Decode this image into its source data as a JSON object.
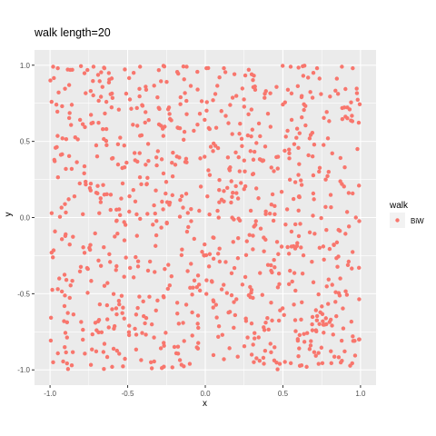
{
  "chart_data": {
    "type": "scatter",
    "title": "walk length=20",
    "xlabel": "x",
    "ylabel": "y",
    "xlim": [
      -1.1,
      1.1
    ],
    "ylim": [
      -1.1,
      1.1
    ],
    "x_ticks": [
      -1.0,
      -0.5,
      0.0,
      0.5,
      1.0
    ],
    "y_ticks": [
      -1.0,
      -0.5,
      0.0,
      0.5,
      1.0
    ],
    "x_tick_labels": [
      "-1.0",
      "-0.5",
      "0.0",
      "0.5",
      "1.0"
    ],
    "y_tick_labels": [
      "-1.0",
      "-0.5",
      "0.0",
      "0.5",
      "1.0"
    ],
    "grid": true,
    "legend": {
      "title": "walk",
      "position": "right",
      "entries": [
        "BiW"
      ]
    },
    "series": [
      {
        "name": "BiW",
        "color": "#F8766D",
        "approx_point_count": 900,
        "distribution": "uniform over [-1, 1] x [-1, 1]",
        "points": [
          [
            -0.98,
            0.99
          ],
          [
            -0.95,
            0.98
          ],
          [
            -0.72,
            0.99
          ],
          [
            -0.65,
            0.98
          ],
          [
            -0.42,
            0.99
          ],
          [
            -0.12,
            0.99
          ],
          [
            0.12,
            0.98
          ],
          [
            0.28,
            0.97
          ],
          [
            0.55,
            0.99
          ],
          [
            0.72,
            0.98
          ],
          [
            0.88,
            0.99
          ],
          [
            0.95,
            0.98
          ],
          [
            -0.99,
            0.76
          ],
          [
            -0.86,
            0.74
          ],
          [
            -0.61,
            0.81
          ],
          [
            -0.3,
            0.72
          ],
          [
            0.05,
            0.77
          ],
          [
            0.32,
            0.86
          ],
          [
            0.62,
            0.79
          ],
          [
            0.93,
            0.71
          ],
          [
            -0.92,
            0.52
          ],
          [
            -0.66,
            0.58
          ],
          [
            -0.41,
            0.54
          ],
          [
            -0.05,
            0.61
          ],
          [
            0.22,
            0.55
          ],
          [
            0.53,
            0.57
          ],
          [
            0.79,
            0.52
          ],
          [
            0.98,
            0.45
          ],
          [
            -0.97,
            0.37
          ],
          [
            -0.78,
            0.29
          ],
          [
            -0.52,
            0.33
          ],
          [
            -0.21,
            0.27
          ],
          [
            0.02,
            0.31
          ],
          [
            0.31,
            0.38
          ],
          [
            0.6,
            0.28
          ],
          [
            0.88,
            0.22
          ],
          [
            -0.88,
            0.12
          ],
          [
            -0.61,
            0.05
          ],
          [
            -0.33,
            0.08
          ],
          [
            0.09,
            0.1
          ],
          [
            0.39,
            0.04
          ],
          [
            0.7,
            0.12
          ],
          [
            0.97,
            0.0
          ],
          [
            -0.99,
            -0.23
          ],
          [
            -0.74,
            -0.18
          ],
          [
            -0.44,
            -0.12
          ],
          [
            -0.15,
            -0.21
          ],
          [
            0.18,
            -0.16
          ],
          [
            0.47,
            -0.24
          ],
          [
            0.76,
            -0.19
          ],
          [
            0.99,
            -0.33
          ],
          [
            -0.95,
            -0.47
          ],
          [
            -0.63,
            -0.43
          ],
          [
            -0.36,
            -0.52
          ],
          [
            -0.04,
            -0.44
          ],
          [
            0.28,
            -0.51
          ],
          [
            0.56,
            -0.42
          ],
          [
            0.84,
            -0.49
          ],
          [
            -0.91,
            -0.68
          ],
          [
            -0.7,
            -0.74
          ],
          [
            -0.49,
            -0.71
          ],
          [
            -0.18,
            -0.63
          ],
          [
            0.11,
            -0.77
          ],
          [
            0.4,
            -0.66
          ],
          [
            0.69,
            -0.74
          ],
          [
            0.95,
            -0.78
          ],
          [
            -0.98,
            -0.95
          ],
          [
            -0.86,
            -0.97
          ],
          [
            -0.6,
            -0.98
          ],
          [
            -0.35,
            -0.95
          ],
          [
            -0.1,
            -0.96
          ],
          [
            0.12,
            -0.93
          ],
          [
            0.35,
            -0.94
          ],
          [
            0.48,
            -0.96
          ],
          [
            0.62,
            -0.97
          ],
          [
            0.73,
            -0.96
          ],
          [
            0.88,
            -0.94
          ],
          [
            0.99,
            -0.8
          ]
        ]
      }
    ]
  }
}
